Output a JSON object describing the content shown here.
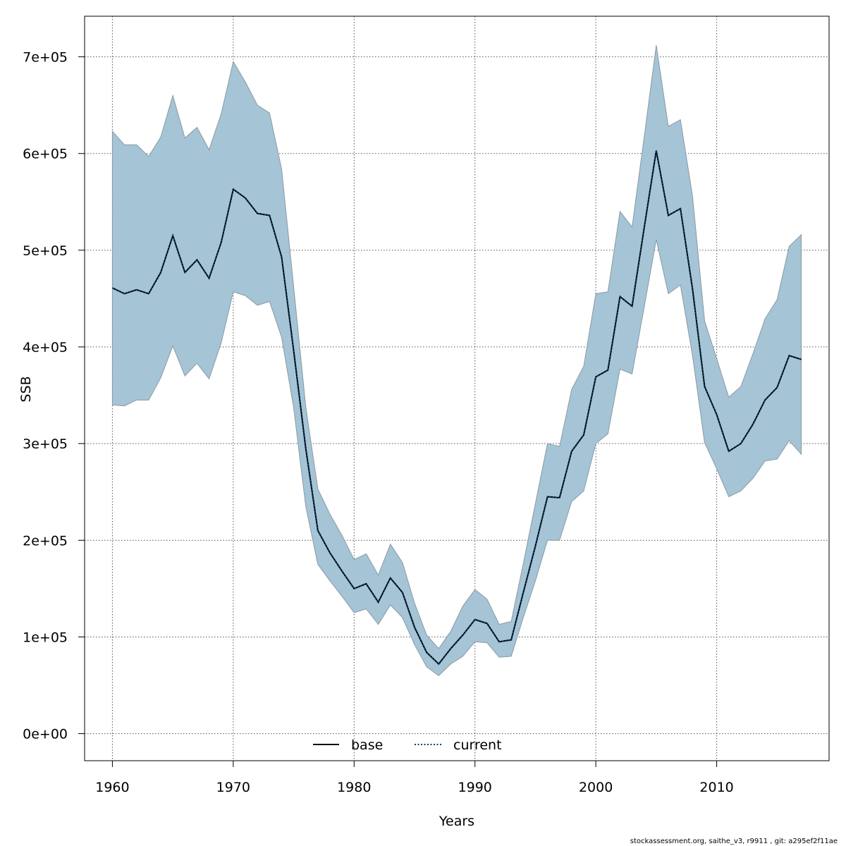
{
  "chart_data": {
    "type": "line",
    "title": "",
    "xlabel": "Years",
    "ylabel": "SSB",
    "xlim": [
      1957.7,
      1919.3
    ],
    "ylim": [
      -28000,
      742000
    ],
    "grid": true,
    "x_ticks": [
      1960,
      1970,
      1980,
      1990,
      2000,
      2010
    ],
    "x_tick_labels": [
      "1960",
      "1970",
      "1980",
      "1990",
      "2000",
      "2010"
    ],
    "y_ticks": [
      0,
      100000,
      200000,
      300000,
      400000,
      500000,
      600000,
      700000
    ],
    "y_tick_labels": [
      "0e+00",
      "1e+05",
      "2e+05",
      "3e+05",
      "4e+05",
      "5e+05",
      "6e+05",
      "7e+05"
    ],
    "band_color": "#a5c4d6",
    "band_edge_color": "#8a9aa5",
    "x": [
      1960,
      1961,
      1962,
      1963,
      1964,
      1965,
      1966,
      1967,
      1968,
      1969,
      1970,
      1971,
      1972,
      1973,
      1974,
      1975,
      1976,
      1977,
      1978,
      1979,
      1980,
      1981,
      1982,
      1983,
      1984,
      1985,
      1986,
      1987,
      1988,
      1989,
      1990,
      1991,
      1992,
      1993,
      1994,
      1995,
      1996,
      1997,
      1998,
      1999,
      2000,
      2001,
      2002,
      2003,
      2004,
      2005,
      2006,
      2007,
      2008,
      2009,
      2010,
      2011,
      2012,
      2013,
      2014,
      2015,
      2016,
      2017
    ],
    "series": [
      {
        "name": "current",
        "color": "#0b3d66",
        "dash": "dotted",
        "values": [
          461000,
          455000,
          459000,
          455000,
          477000,
          515000,
          477000,
          490000,
          471000,
          508000,
          563000,
          554000,
          538000,
          536000,
          493000,
          396000,
          295000,
          210000,
          187000,
          168000,
          150000,
          155000,
          136000,
          161000,
          146000,
          110000,
          84000,
          72000,
          88000,
          102000,
          118000,
          114000,
          95000,
          97000,
          146000,
          194000,
          245000,
          244000,
          292000,
          309000,
          369000,
          376000,
          452000,
          442000,
          523000,
          603000,
          536000,
          543000,
          460000,
          359000,
          330000,
          292000,
          300000,
          320000,
          345000,
          358000,
          391000,
          387000
        ],
        "lower": [
          340000,
          339000,
          345000,
          345000,
          368000,
          401000,
          370000,
          383000,
          367000,
          404000,
          457000,
          453000,
          443000,
          447000,
          410000,
          337000,
          235000,
          175000,
          158000,
          142000,
          125000,
          129000,
          113000,
          133000,
          120000,
          92000,
          69000,
          60000,
          72000,
          80000,
          95000,
          94000,
          79000,
          80000,
          120000,
          158000,
          200000,
          200000,
          240000,
          251000,
          300000,
          310000,
          377000,
          372000,
          441000,
          511000,
          455000,
          464000,
          391000,
          301000,
          274000,
          245000,
          251000,
          264000,
          282000,
          284000,
          303000,
          289000
        ],
        "upper": [
          623000,
          609000,
          609000,
          597000,
          617000,
          660000,
          616000,
          627000,
          604000,
          641000,
          695000,
          674000,
          650000,
          642000,
          584000,
          462000,
          338000,
          253000,
          227000,
          205000,
          180000,
          186000,
          164000,
          196000,
          177000,
          135000,
          102000,
          88000,
          106000,
          132000,
          149000,
          139000,
          113000,
          116000,
          176000,
          238000,
          300000,
          297000,
          356000,
          380000,
          455000,
          457000,
          540000,
          524000,
          617000,
          712000,
          628000,
          635000,
          556000,
          427000,
          388000,
          348000,
          359000,
          393000,
          429000,
          449000,
          504000,
          516000
        ]
      },
      {
        "name": "base",
        "color": "#000000",
        "dash": "solid",
        "values": [
          461000,
          455000,
          459000,
          455000,
          477000,
          515000,
          477000,
          490000,
          471000,
          508000,
          563000,
          554000,
          538000,
          536000,
          493000,
          396000,
          295000,
          210000,
          187000,
          168000,
          150000,
          155000,
          136000,
          161000,
          146000,
          110000,
          84000,
          72000,
          88000,
          102000,
          118000,
          114000,
          95000,
          97000,
          146000,
          194000,
          245000,
          244000,
          292000,
          309000,
          369000,
          376000,
          452000,
          442000,
          523000,
          603000,
          536000,
          543000,
          460000,
          359000,
          330000,
          292000,
          300000,
          320000,
          345000,
          358000,
          391000,
          387000
        ]
      }
    ],
    "legend": {
      "placement": "bottom-center",
      "entries": [
        {
          "label": "base",
          "color": "#000000",
          "dash": "solid"
        },
        {
          "label": "current",
          "color": "#0b3d66",
          "dash": "dotted"
        }
      ]
    }
  },
  "footer": "stockassessment.org, saithe_v3, r9911 , git: a295ef2f11ae"
}
